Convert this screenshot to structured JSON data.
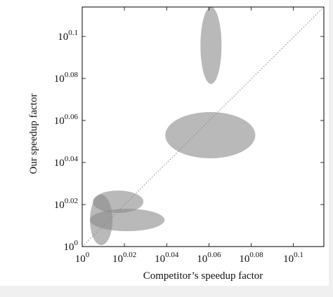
{
  "chart_data": {
    "type": "ellipse-scatter",
    "x_label": "Competitor’s speedup factor",
    "y_label": "Our speedup factor",
    "log_scale": true,
    "xlim": [
      1,
      1.3015
    ],
    "ylim": [
      1,
      1.3002
    ],
    "xticks": [
      {
        "value": 1,
        "label": "10^0"
      },
      {
        "value": 1.0471,
        "label": "10^0.02"
      },
      {
        "value": 1.0965,
        "label": "10^0.04"
      },
      {
        "value": 1.1482,
        "label": "10^0.06"
      },
      {
        "value": 1.2023,
        "label": "10^0.08"
      },
      {
        "value": 1.2589,
        "label": "10^0.1"
      }
    ],
    "yticks": [
      {
        "value": 1,
        "label": "10^0"
      },
      {
        "value": 1.0471,
        "label": "10^0.02"
      },
      {
        "value": 1.0965,
        "label": "10^0.04"
      },
      {
        "value": 1.1482,
        "label": "10^0.06"
      },
      {
        "value": 1.2023,
        "label": "10^0.08"
      },
      {
        "value": 1.2589,
        "label": "10^0.1"
      }
    ],
    "color": "#8a8a8a",
    "x_min": [
      1.1376,
      1.0948,
      1.0116,
      1.0085,
      1.0085
    ],
    "x_max": [
      1.1641,
      1.2078,
      1.069,
      1.094,
      1.0336
    ],
    "y_min": [
      1.195,
      1.1015,
      1.0375,
      1.017,
      1.0015
    ],
    "y_max": [
      1.3002,
      1.1588,
      1.0633,
      1.0423,
      1.0584
    ]
  }
}
